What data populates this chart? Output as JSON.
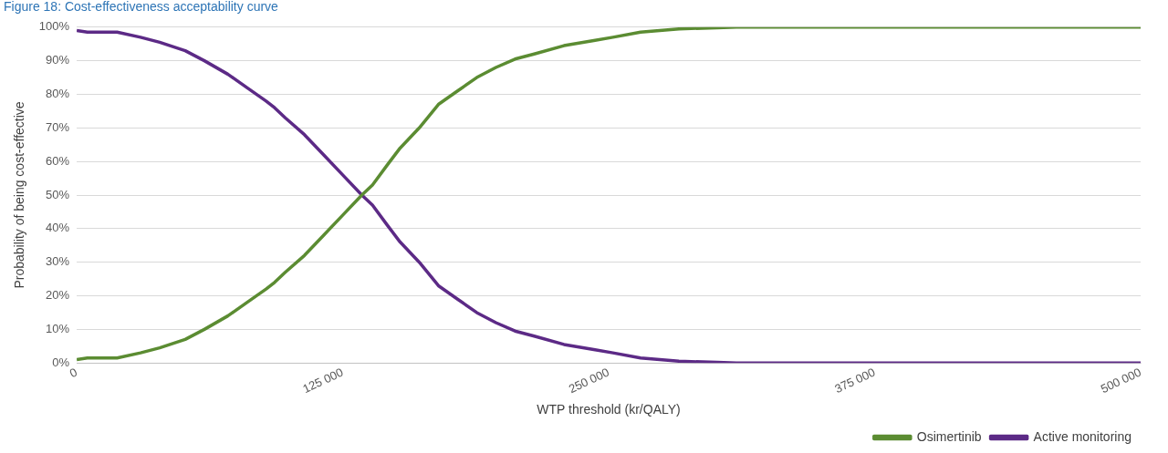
{
  "chart_data": {
    "type": "line",
    "title": "Figure 18: Cost-effectiveness acceptability curve",
    "xlabel": "WTP threshold (kr/QALY)",
    "ylabel": "Probability of being cost-effective",
    "x": [
      0,
      5000,
      19000,
      30000,
      39000,
      51000,
      60000,
      71000,
      80000,
      89000,
      93000,
      98000,
      107000,
      116000,
      125000,
      134000,
      139000,
      146000,
      152000,
      161000,
      170000,
      179000,
      188000,
      197000,
      206000,
      215000,
      229000,
      243000,
      252000,
      265000,
      283000,
      301000,
      310000,
      500000
    ],
    "series": [
      {
        "name": "Osimertinib",
        "color": "#5b8c32",
        "values": [
          1,
          1.5,
          1.5,
          3,
          4.5,
          7,
          10,
          14,
          18,
          22,
          24,
          27,
          32,
          38,
          44,
          50,
          53,
          59,
          64,
          70,
          77,
          81,
          85,
          88,
          90.5,
          92,
          94.5,
          96,
          97,
          98.5,
          99.5,
          99.8,
          100,
          100
        ]
      },
      {
        "name": "Active monitoring",
        "color": "#5c2a86",
        "values": [
          99,
          98.5,
          98.5,
          97,
          95.5,
          93,
          90,
          86,
          82,
          78,
          76,
          73,
          68,
          62,
          56,
          50,
          47,
          41,
          36,
          30,
          23,
          19,
          15,
          12,
          9.5,
          8,
          5.5,
          4,
          3,
          1.5,
          0.5,
          0.2,
          0,
          0
        ]
      }
    ],
    "xlim": [
      0,
      500000
    ],
    "xticks": [
      {
        "value": 0,
        "label": "0"
      },
      {
        "value": 125000,
        "label": "125 000"
      },
      {
        "value": 250000,
        "label": "250 000"
      },
      {
        "value": 375000,
        "label": "375 000"
      },
      {
        "value": 500000,
        "label": "500 000"
      }
    ],
    "ylim": [
      0,
      100
    ],
    "yticks": [
      {
        "value": 0,
        "label": "0%"
      },
      {
        "value": 10,
        "label": "10%"
      },
      {
        "value": 20,
        "label": "20%"
      },
      {
        "value": 30,
        "label": "30%"
      },
      {
        "value": 40,
        "label": "40%"
      },
      {
        "value": 50,
        "label": "50%"
      },
      {
        "value": 60,
        "label": "60%"
      },
      {
        "value": 70,
        "label": "70%"
      },
      {
        "value": 80,
        "label": "80%"
      },
      {
        "value": 90,
        "label": "90%"
      },
      {
        "value": 100,
        "label": "100%"
      }
    ],
    "grid": "y",
    "legend": "bottom right",
    "marker": "none",
    "line_style": "solid"
  }
}
